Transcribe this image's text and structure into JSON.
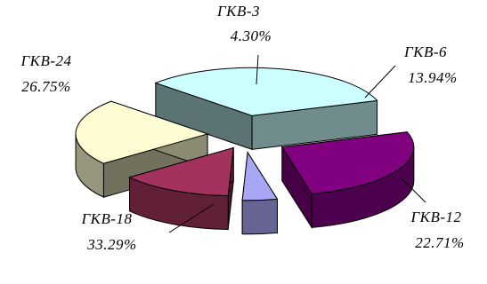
{
  "chart_data": {
    "type": "pie",
    "style": "3d-exploded",
    "title": "",
    "slices": [
      {
        "label": "ГКВ-3",
        "value": 4.3,
        "value_label": "4.30%",
        "color": "#a9a7f5"
      },
      {
        "label": "ГКВ-6",
        "value": 13.94,
        "value_label": "13.94%",
        "color": "#a3335e"
      },
      {
        "label": "ГКВ-12",
        "value": 22.71,
        "value_label": "22.71%",
        "color": "#fdfbd1"
      },
      {
        "label": "ГКВ-18",
        "value": 33.29,
        "value_label": "33.29%",
        "color": "#ccffff"
      },
      {
        "label": "ГКВ-24",
        "value": 26.75,
        "value_label": "26.75%",
        "color": "#800080"
      }
    ],
    "legend": "none"
  }
}
